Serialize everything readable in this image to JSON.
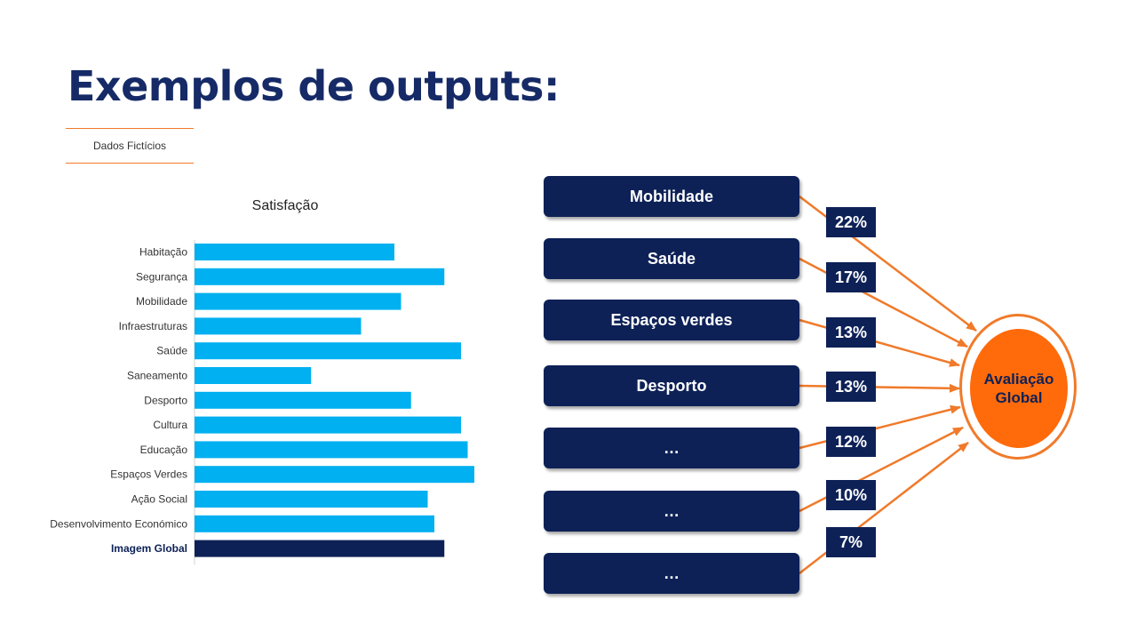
{
  "slide": {
    "title": "Exemplos de outputs:",
    "tag": "Dados Fictícios"
  },
  "chart_data": {
    "type": "bar",
    "orientation": "horizontal",
    "title": "Satisfação",
    "xlabel": "",
    "ylabel": "",
    "categories": [
      "Habitação",
      "Segurança",
      "Mobilidade",
      "Infraestruturas",
      "Saúde",
      "Saneamento",
      "Desporto",
      "Cultura",
      "Educação",
      "Espaços Verdes",
      "Ação Social",
      "Desenvolvimento Económico",
      "Imagem Global"
    ],
    "values": [
      60,
      75,
      62,
      50,
      80,
      35,
      65,
      80,
      82,
      84,
      70,
      72,
      75
    ],
    "highlight_category": "Imagem Global",
    "xlim": [
      0,
      100
    ],
    "grid": false,
    "colors": {
      "bar": "#00b0f0",
      "highlight": "#0d2157"
    }
  },
  "diagram": {
    "categories": [
      "Mobilidade",
      "Saúde",
      "Espaços verdes",
      "Desporto",
      "…",
      "…",
      "…"
    ],
    "weights": [
      "22%",
      "17%",
      "13%",
      "13%",
      "12%",
      "10%",
      "7%"
    ],
    "target": "Avaliação Global",
    "colors": {
      "box": "#0d2157",
      "arrow": "#f07a2a",
      "target_fill": "#ff6a0a"
    }
  }
}
